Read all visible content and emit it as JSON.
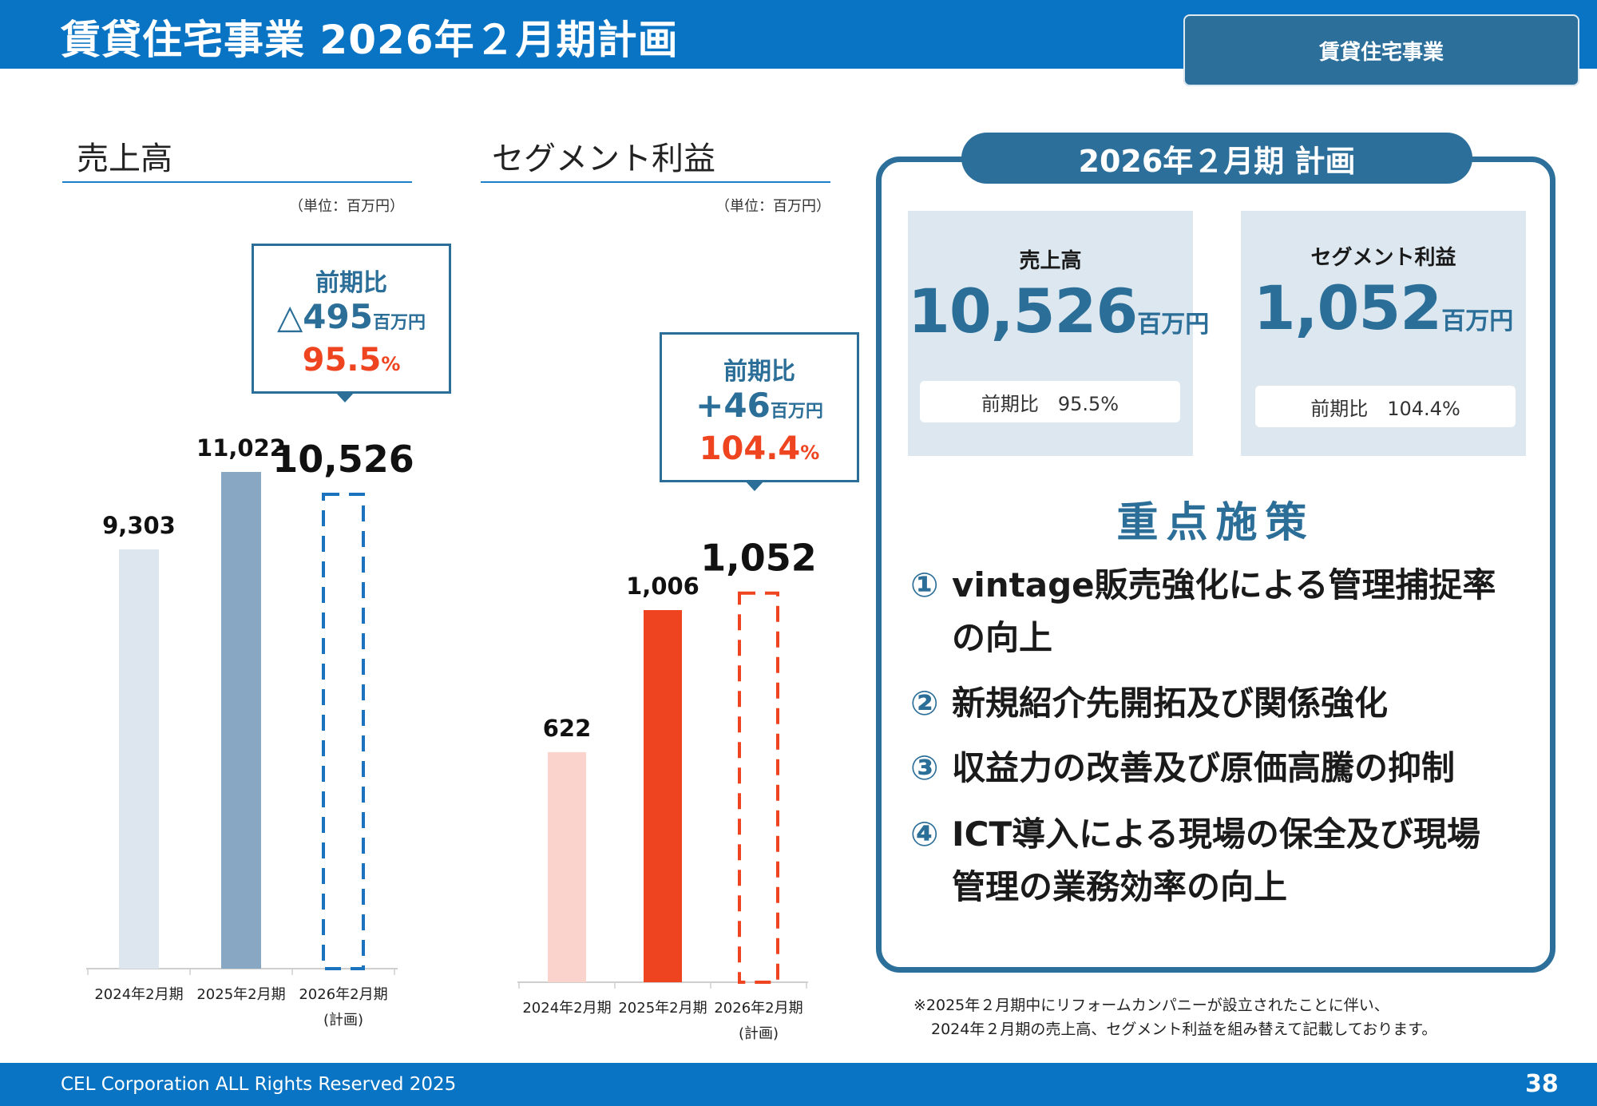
{
  "header": {
    "title": "賃貸住宅事業 2026年２月期計画",
    "segment_tab": "賃貸住宅事業"
  },
  "sales_section": {
    "title": "売上高",
    "unit": "（単位：百万円）",
    "callout": {
      "label": "前期比",
      "diff": "△495",
      "diff_unit": "百万円",
      "ratio": "95.5",
      "ratio_unit": "%"
    }
  },
  "profit_section": {
    "title": "セグメント利益",
    "unit": "（単位：百万円）",
    "callout": {
      "label": "前期比",
      "diff": "+46",
      "diff_unit": "百万円",
      "ratio": "104.4",
      "ratio_unit": "%"
    }
  },
  "chart_data": [
    {
      "type": "bar",
      "title": "売上高",
      "categories": [
        "2024年2月期",
        "2025年2月期",
        "2026年2月期"
      ],
      "category_sublabels": [
        "",
        "",
        "(計画)"
      ],
      "values": [
        9303,
        11022,
        10526
      ],
      "value_labels": [
        "9,303",
        "11,022",
        "10,526"
      ],
      "ylim": [
        0,
        11022
      ],
      "colors": [
        "#dde6ee",
        "#87a7c2",
        "#1b73c0"
      ],
      "planned_index": 2
    },
    {
      "type": "bar",
      "title": "セグメント利益",
      "categories": [
        "2024年2月期",
        "2025年2月期",
        "2026年2月期"
      ],
      "category_sublabels": [
        "",
        "",
        "(計画)"
      ],
      "values": [
        622,
        1006,
        1052
      ],
      "value_labels": [
        "622",
        "1,006",
        "1,052"
      ],
      "ylim": [
        0,
        1006
      ],
      "colors": [
        "#fad4cc",
        "#ee4520",
        "#ee4520"
      ],
      "planned_index": 2
    }
  ],
  "plan_panel": {
    "tab": "2026年２月期 計画",
    "sales": {
      "label": "売上高",
      "value": "10,526",
      "unit": "百万円",
      "yoy": "前期比　95.5%"
    },
    "profit": {
      "label": "セグメント利益",
      "value": "1,052",
      "unit": "百万円",
      "yoy": "前期比　104.4%"
    },
    "focus_title": "重点施策",
    "items": [
      {
        "num": "①",
        "line1": "vintage販売強化による管理捕捉率",
        "line2": "の向上"
      },
      {
        "num": "②",
        "line1": "新規紹介先開拓及び関係強化",
        "line2": ""
      },
      {
        "num": "③",
        "line1": "収益力の改善及び原価高騰の抑制",
        "line2": ""
      },
      {
        "num": "④",
        "line1": "ICT導入による現場の保全及び現場",
        "line2": "管理の業務効率の向上"
      }
    ]
  },
  "note": {
    "line1": "※2025年２月期中にリフォームカンパニーが設立されたことに伴い、",
    "line2": "2024年２月期の売上高、セグメント利益を組み替えて記載しております。"
  },
  "footer": {
    "text": "CEL Corporation ALL Rights Reserved 2025",
    "page": "38"
  },
  "colors": {
    "header_blue": "#0a74c4",
    "panel_blue": "#2c6f9a",
    "accent_red": "#ee4420"
  }
}
